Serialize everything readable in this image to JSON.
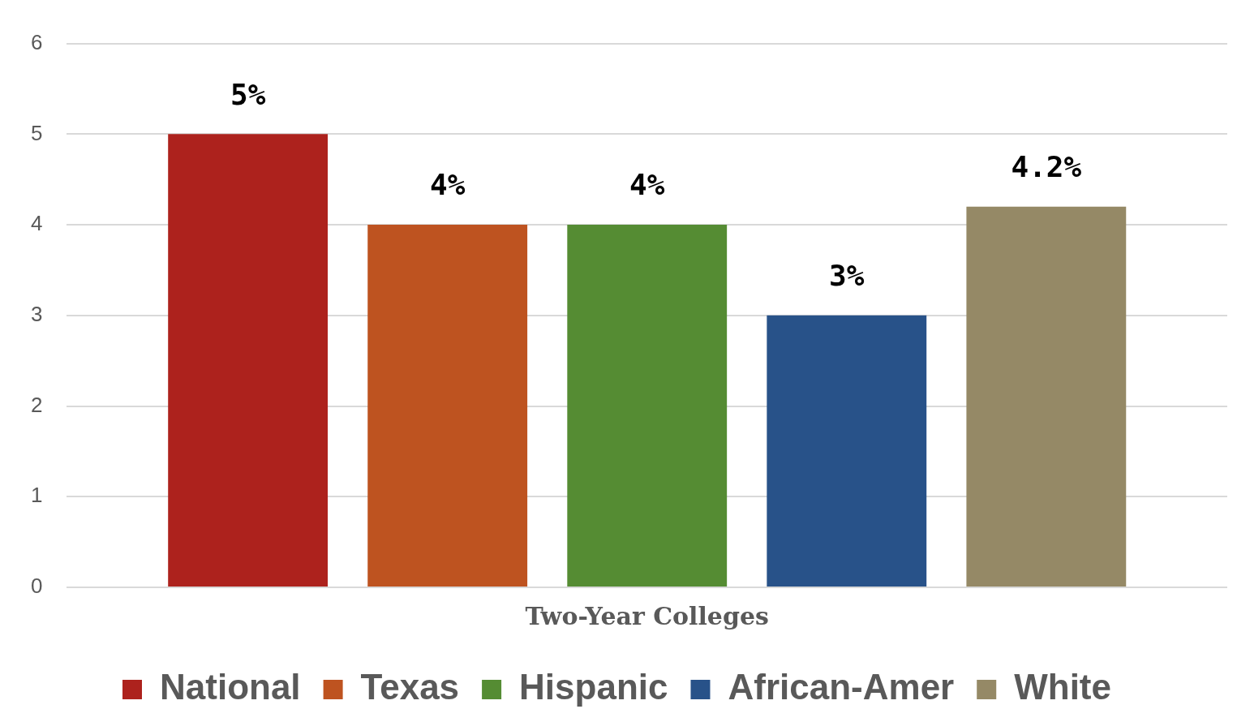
{
  "chart_data": {
    "type": "bar",
    "categories": [
      "Two-Year Colleges"
    ],
    "series": [
      {
        "name": "National",
        "color": "#ad221d",
        "values": [
          5
        ],
        "value_labels": [
          "5%"
        ]
      },
      {
        "name": "Texas",
        "color": "#be5320",
        "values": [
          4
        ],
        "value_labels": [
          "4%"
        ]
      },
      {
        "name": "Hispanic",
        "color": "#558c33",
        "values": [
          4
        ],
        "value_labels": [
          "4%"
        ]
      },
      {
        "name": "African-Amer",
        "color": "#285289",
        "values": [
          3
        ],
        "value_labels": [
          "3%"
        ]
      },
      {
        "name": "White",
        "color": "#958966",
        "values": [
          4.2
        ],
        "value_labels": [
          "4.2%"
        ]
      }
    ],
    "ylim": [
      0,
      6
    ],
    "yticks": [
      0,
      1,
      2,
      3,
      4,
      5,
      6
    ],
    "grid": "y",
    "legend": "bottom"
  }
}
